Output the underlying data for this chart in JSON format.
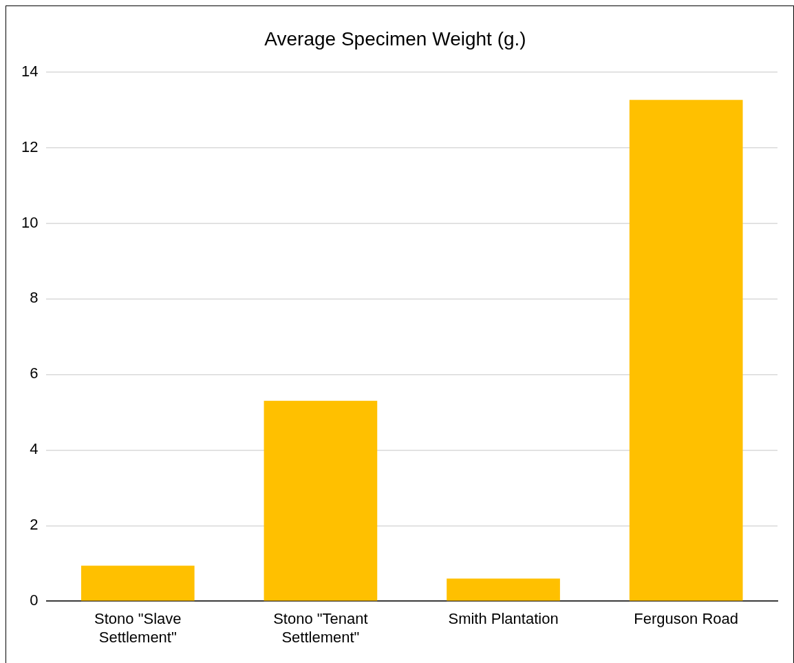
{
  "chart_data": {
    "type": "bar",
    "title": "Average Specimen Weight (g.)",
    "categories": [
      "Stono \"Slave Settlement\"",
      "Stono \"Tenant Settlement\"",
      "Smith Plantation",
      "Ferguson Road"
    ],
    "values": [
      0.94,
      5.3,
      0.6,
      13.26
    ],
    "color": "#ffc000",
    "ylim": [
      0,
      14
    ],
    "yticks": [
      0,
      2,
      4,
      6,
      8,
      10,
      12,
      14
    ],
    "grid": "y"
  }
}
